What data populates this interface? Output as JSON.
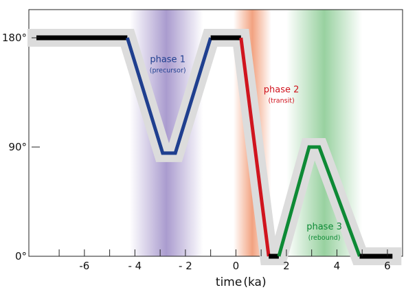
{
  "chart_data": {
    "type": "line",
    "xlabel": "time",
    "xlabel_unit": "(ka)",
    "xlim": [
      -8.2,
      6.6
    ],
    "ylim": [
      0,
      180
    ],
    "x_ticks": [
      -6,
      -4,
      -2,
      0,
      2,
      4,
      6
    ],
    "x_tick_labels": [
      "-6",
      "- 4",
      "- 2",
      "0",
      "2",
      "4",
      "6"
    ],
    "x_minor_ticks": [
      -7,
      -5,
      -3,
      -1,
      1,
      3,
      5
    ],
    "y_ticks": [
      0,
      90,
      180
    ],
    "y_tick_labels": [
      "0°",
      "90°",
      "180°"
    ],
    "grid": false,
    "colors": {
      "stable": "#000000",
      "phase1": "#1f3f8f",
      "phase2": "#d0141e",
      "phase3": "#0d8a35",
      "halo": "#dcdcdc",
      "band1": "#9b8ac6",
      "band2": "#f0926a",
      "band3": "#86c98f"
    },
    "bands": [
      {
        "from": -4.2,
        "to": -1.3,
        "color": "#9b8ac6"
      },
      {
        "from": -0.1,
        "to": 1.4,
        "color": "#f0926a"
      },
      {
        "from": 2.0,
        "to": 5.0,
        "color": "#86c98f"
      }
    ],
    "series": [
      {
        "segment": "stable",
        "x": [
          -7.9,
          -4.3
        ],
        "y": [
          180,
          180
        ]
      },
      {
        "segment": "phase1",
        "x": [
          -4.3,
          -2.9,
          -2.4,
          -1.0
        ],
        "y": [
          180,
          85,
          85,
          180
        ]
      },
      {
        "segment": "stable",
        "x": [
          -1.0,
          0.2
        ],
        "y": [
          180,
          180
        ]
      },
      {
        "segment": "phase2",
        "x": [
          0.2,
          1.3
        ],
        "y": [
          180,
          0
        ]
      },
      {
        "segment": "stable",
        "x": [
          1.3,
          1.7
        ],
        "y": [
          0,
          0
        ]
      },
      {
        "segment": "phase3",
        "x": [
          1.7,
          2.9,
          3.3,
          4.9
        ],
        "y": [
          0,
          90,
          90,
          0
        ]
      },
      {
        "segment": "stable",
        "x": [
          4.9,
          6.2
        ],
        "y": [
          0,
          0
        ]
      }
    ],
    "halo_path": {
      "x": [
        -7.9,
        -4.3,
        -2.9,
        -2.4,
        -1.0,
        0.2,
        1.3,
        1.7,
        2.9,
        3.3,
        4.9,
        6.2
      ],
      "y": [
        180,
        180,
        85,
        85,
        180,
        180,
        0,
        0,
        90,
        90,
        0,
        0
      ]
    },
    "annotations": [
      {
        "title": "phase 1",
        "subtitle": "(precursor)",
        "x": -2.7,
        "y": 160,
        "color_key": "phase1"
      },
      {
        "title": "phase 2",
        "subtitle": "(transit)",
        "x": 1.8,
        "y": 135,
        "color_key": "phase2"
      },
      {
        "title": "phase 3",
        "subtitle": "(rebound)",
        "x": 3.5,
        "y": 22,
        "color_key": "phase3"
      }
    ]
  }
}
